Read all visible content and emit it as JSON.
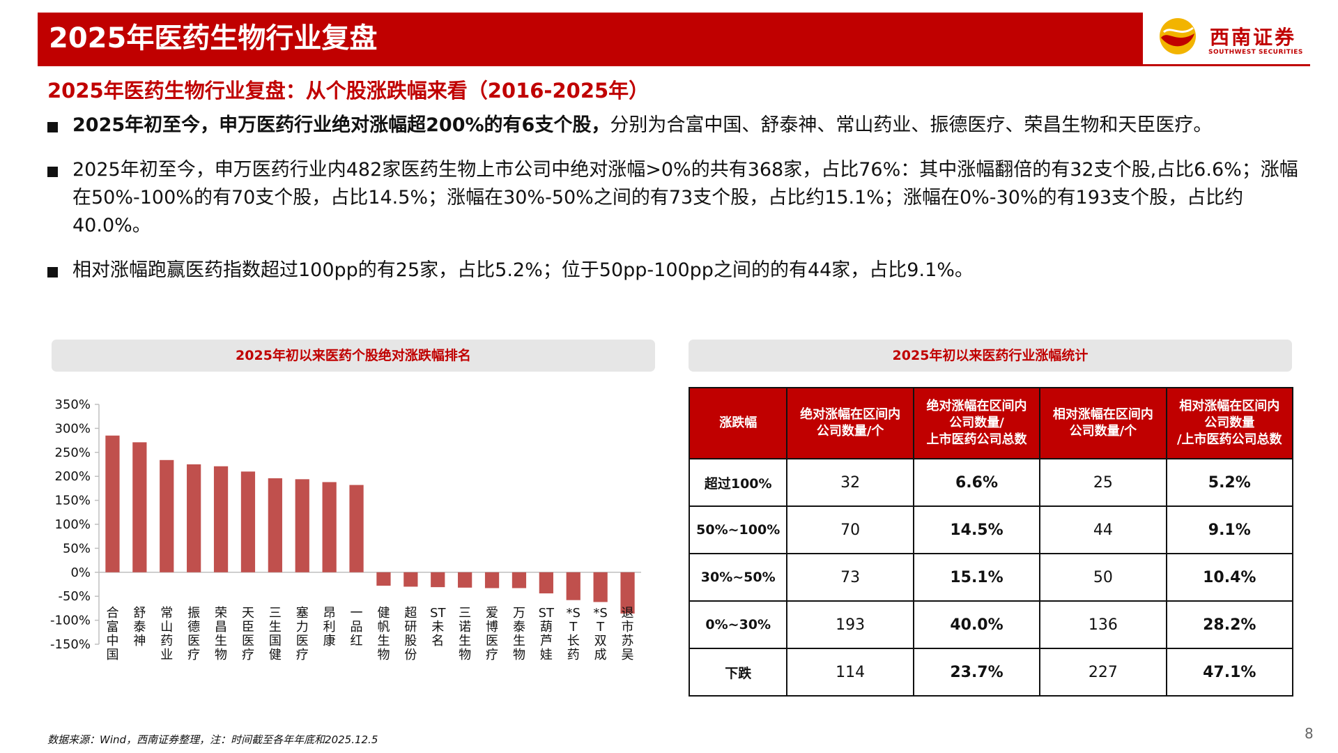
{
  "header": {
    "title": "2025年医药生物行业复盘"
  },
  "logo": {
    "cn": "西南证券",
    "en": "SOUTHWEST SECURITIES"
  },
  "colors": {
    "brand_red": "#c00000",
    "bar_red": "#c0504d"
  },
  "subtitle": "2025年医药生物行业复盘：从个股涨跌幅来看（2016-2025年）",
  "bullets": [
    {
      "bold": "2025年初至今，申万医药行业绝对涨幅超200%的有6支个股，",
      "text": "分别为合富中国、舒泰神、常山药业、振德医疗、荣昌生物和天臣医疗。"
    },
    {
      "bold": "",
      "text": "2025年初至今，申万医药行业内482家医药生物上市公司中绝对涨幅>0%的共有368家，占比76%：其中涨幅翻倍的有32支个股,占比6.6%；涨幅在50%-100%的有70支个股，占比14.5%；涨幅在30%-50%之间的有73支个股，占比约15.1%；涨幅在0%-30%的有193支个股，占比约40.0%。"
    },
    {
      "bold": "",
      "text": "相对涨幅跑赢医药指数超过100pp的有25家，占比5.2%；位于50pp-100pp之间的的有44家，占比9.1%。"
    }
  ],
  "left_panel_title": "2025年初以来医药个股绝对涨跌幅排名",
  "right_panel_title": "2025年初以来医药行业涨幅统计",
  "chart_data": {
    "type": "bar",
    "categories": [
      "合富中国",
      "舒泰神",
      "常山药业",
      "振德医疗",
      "荣昌生物",
      "天臣医疗",
      "三生国健",
      "塞力医疗",
      "昂利康",
      "一品红",
      "健帆生物",
      "超研股份",
      "ST未名",
      "三诺生物",
      "爱博医疗",
      "万泰生物",
      "ST葫芦娃",
      "*ST长药",
      "*ST双成",
      "退市苏吴"
    ],
    "values": [
      285,
      271,
      234,
      225,
      221,
      210,
      196,
      194,
      188,
      182,
      -28,
      -30,
      -31,
      -32,
      -33,
      -33,
      -44,
      -58,
      -62,
      -86
    ],
    "ylim": [
      -150,
      350
    ],
    "yticks": [
      350,
      300,
      250,
      200,
      150,
      100,
      50,
      0,
      -50,
      -100,
      -150
    ],
    "ytick_labels": [
      "350%",
      "300%",
      "250%",
      "200%",
      "150%",
      "100%",
      "50%",
      "0%",
      "-50%",
      "-100%",
      "-150%"
    ],
    "grid": false,
    "bar_color": "#c0504d"
  },
  "table": {
    "headers": [
      "涨跌幅",
      "绝对涨幅在区间内公司数量/个",
      "绝对涨幅在区间内公司数量/上市医药公司总数",
      "相对涨幅在区间内公司数量/个",
      "相对涨幅在区间内公司数量/上市医药公司总数"
    ],
    "header_lines": [
      [
        "涨跌幅"
      ],
      [
        "绝对涨幅在区间内",
        "公司数量/个"
      ],
      [
        "绝对涨幅在区间内",
        "公司数量/",
        "上市医药公司总数"
      ],
      [
        "相对涨幅在区间内",
        "公司数量/个"
      ],
      [
        "相对涨幅在区间内",
        "公司数量",
        "/上市医药公司总数"
      ]
    ],
    "rows": [
      [
        "超过100%",
        "32",
        "6.6%",
        "25",
        "5.2%"
      ],
      [
        "50%~100%",
        "70",
        "14.5%",
        "44",
        "9.1%"
      ],
      [
        "30%~50%",
        "73",
        "15.1%",
        "50",
        "10.4%"
      ],
      [
        "0%~30%",
        "193",
        "40.0%",
        "136",
        "28.2%"
      ],
      [
        "下跌",
        "114",
        "23.7%",
        "227",
        "47.1%"
      ]
    ]
  },
  "footnote": "数据来源：Wind，西南证券整理，注：时间截至各年年底和2025.12.5",
  "page_number": "8"
}
